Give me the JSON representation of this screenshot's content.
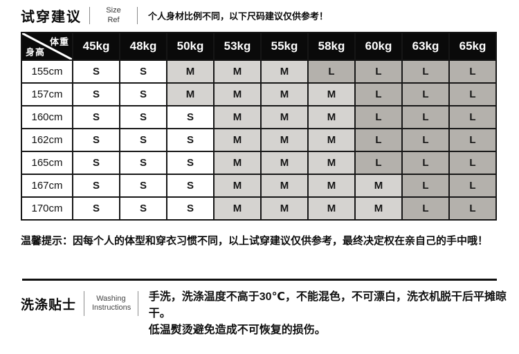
{
  "size_section": {
    "title": "试穿建议",
    "subtitle_line1": "Size",
    "subtitle_line2": "Ref",
    "note": "个人身材比例不同，以下尺码建议仅供参考！"
  },
  "size_table": {
    "corner": {
      "top": "体重",
      "bottom": "身高"
    },
    "weight_headers": [
      "45kg",
      "48kg",
      "50kg",
      "53kg",
      "55kg",
      "58kg",
      "60kg",
      "63kg",
      "65kg"
    ],
    "rows": [
      {
        "height": "155cm",
        "sizes": [
          "S",
          "S",
          "M",
          "M",
          "M",
          "L",
          "L",
          "L",
          "L"
        ]
      },
      {
        "height": "157cm",
        "sizes": [
          "S",
          "S",
          "M",
          "M",
          "M",
          "M",
          "L",
          "L",
          "L"
        ]
      },
      {
        "height": "160cm",
        "sizes": [
          "S",
          "S",
          "S",
          "M",
          "M",
          "M",
          "L",
          "L",
          "L"
        ]
      },
      {
        "height": "162cm",
        "sizes": [
          "S",
          "S",
          "S",
          "M",
          "M",
          "M",
          "L",
          "L",
          "L"
        ]
      },
      {
        "height": "165cm",
        "sizes": [
          "S",
          "S",
          "S",
          "M",
          "M",
          "M",
          "L",
          "L",
          "L"
        ]
      },
      {
        "height": "167cm",
        "sizes": [
          "S",
          "S",
          "S",
          "M",
          "M",
          "M",
          "M",
          "L",
          "L"
        ]
      },
      {
        "height": "170cm",
        "sizes": [
          "S",
          "S",
          "S",
          "M",
          "M",
          "M",
          "M",
          "L",
          "L"
        ]
      }
    ]
  },
  "tip": "温馨提示：因每个人的体型和穿衣习惯不同，以上试穿建议仅供参考，最终决定权在亲自己的手中哦！",
  "washing_section": {
    "title": "洗涤贴士",
    "subtitle_line1": "Washing",
    "subtitle_line2": "Instructions",
    "line1": "手洗，洗涤温度不高于30℃，不能混色，不可漂白，洗衣机脱干后平摊晾干。",
    "line2": "低温熨烫避免造成不可恢复的损伤。"
  },
  "colors": {
    "header_bg": "#0a0a0a",
    "header_text": "#ffffff",
    "size_s_bg": "#ffffff",
    "size_m_bg": "#d5d3d0",
    "size_l_bg": "#b4b1ac"
  }
}
